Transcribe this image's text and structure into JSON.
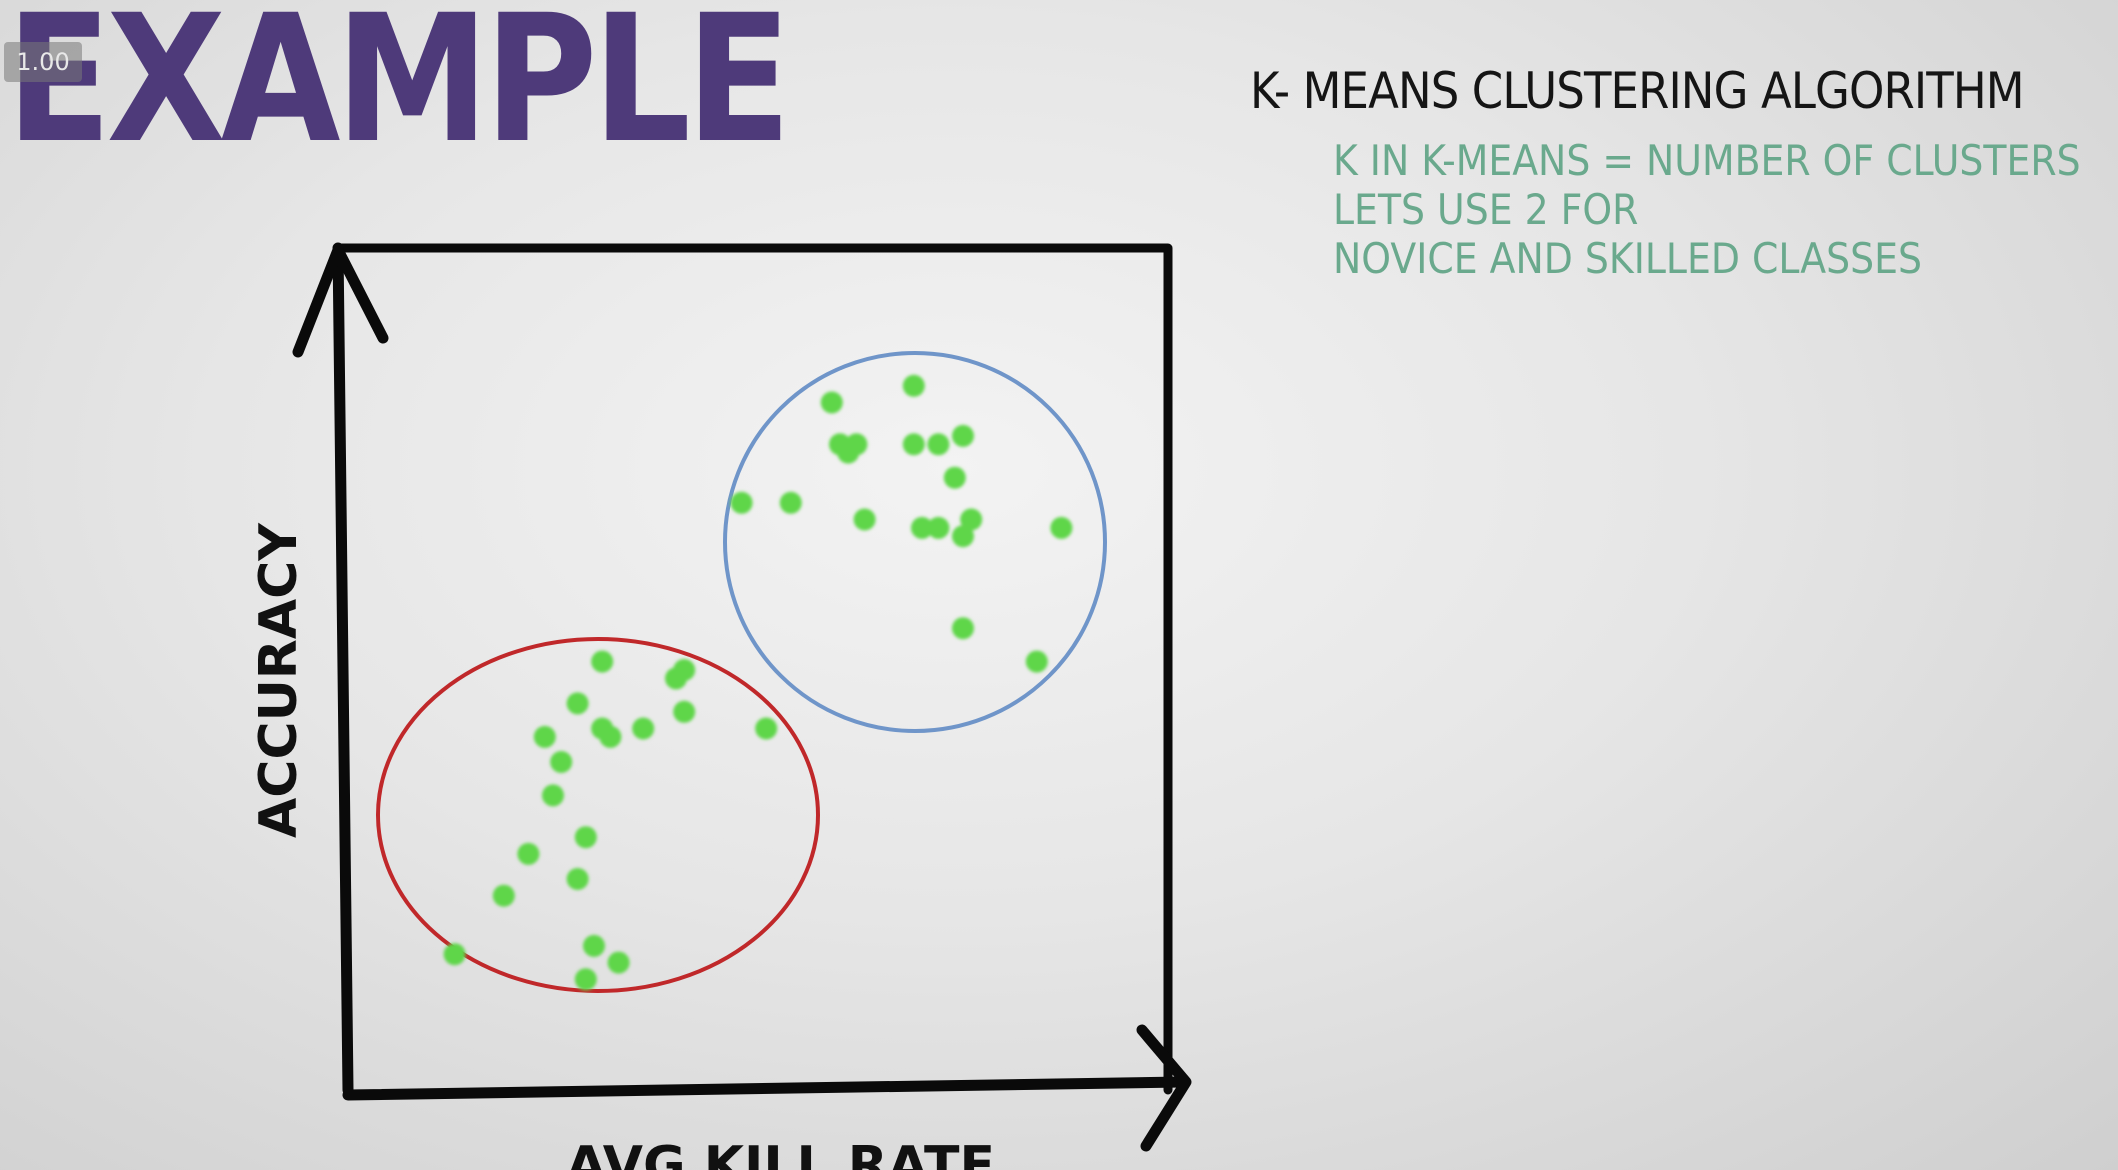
{
  "player": {
    "speed_label": "1.00"
  },
  "slide": {
    "heading": "EXAMPLE",
    "note_title": "K- MEANS CLUSTERING ALGORITHM",
    "note_lines": [
      "K IN K-MEANS = NUMBER OF CLUSTERS",
      "LETS USE 2 FOR",
      "NOVICE AND SKILLED CLASSES"
    ]
  },
  "chart_data": {
    "type": "scatter",
    "xlabel": "AVG KILL RATE",
    "ylabel": "ACCURACY",
    "point_color": "#5fd64a",
    "series": [
      {
        "cluster_color": "#c0282a",
        "points": [
          [
            0.13,
            0.16
          ],
          [
            0.19,
            0.23
          ],
          [
            0.22,
            0.28
          ],
          [
            0.25,
            0.35
          ],
          [
            0.26,
            0.39
          ],
          [
            0.24,
            0.42
          ],
          [
            0.28,
            0.25
          ],
          [
            0.29,
            0.3
          ],
          [
            0.28,
            0.46
          ],
          [
            0.31,
            0.51
          ],
          [
            0.31,
            0.43
          ],
          [
            0.32,
            0.42
          ],
          [
            0.36,
            0.43
          ],
          [
            0.4,
            0.49
          ],
          [
            0.41,
            0.5
          ],
          [
            0.41,
            0.45
          ],
          [
            0.51,
            0.43
          ],
          [
            0.3,
            0.17
          ],
          [
            0.33,
            0.15
          ],
          [
            0.29,
            0.13
          ]
        ]
      },
      {
        "cluster_color": "#6f95c9",
        "points": [
          [
            0.48,
            0.7
          ],
          [
            0.54,
            0.7
          ],
          [
            0.59,
            0.82
          ],
          [
            0.6,
            0.77
          ],
          [
            0.61,
            0.76
          ],
          [
            0.62,
            0.77
          ],
          [
            0.63,
            0.68
          ],
          [
            0.69,
            0.84
          ],
          [
            0.69,
            0.77
          ],
          [
            0.7,
            0.67
          ],
          [
            0.72,
            0.77
          ],
          [
            0.72,
            0.67
          ],
          [
            0.74,
            0.73
          ],
          [
            0.75,
            0.66
          ],
          [
            0.76,
            0.68
          ],
          [
            0.75,
            0.78
          ],
          [
            0.75,
            0.55
          ],
          [
            0.87,
            0.67
          ],
          [
            0.84,
            0.51
          ]
        ]
      }
    ]
  }
}
